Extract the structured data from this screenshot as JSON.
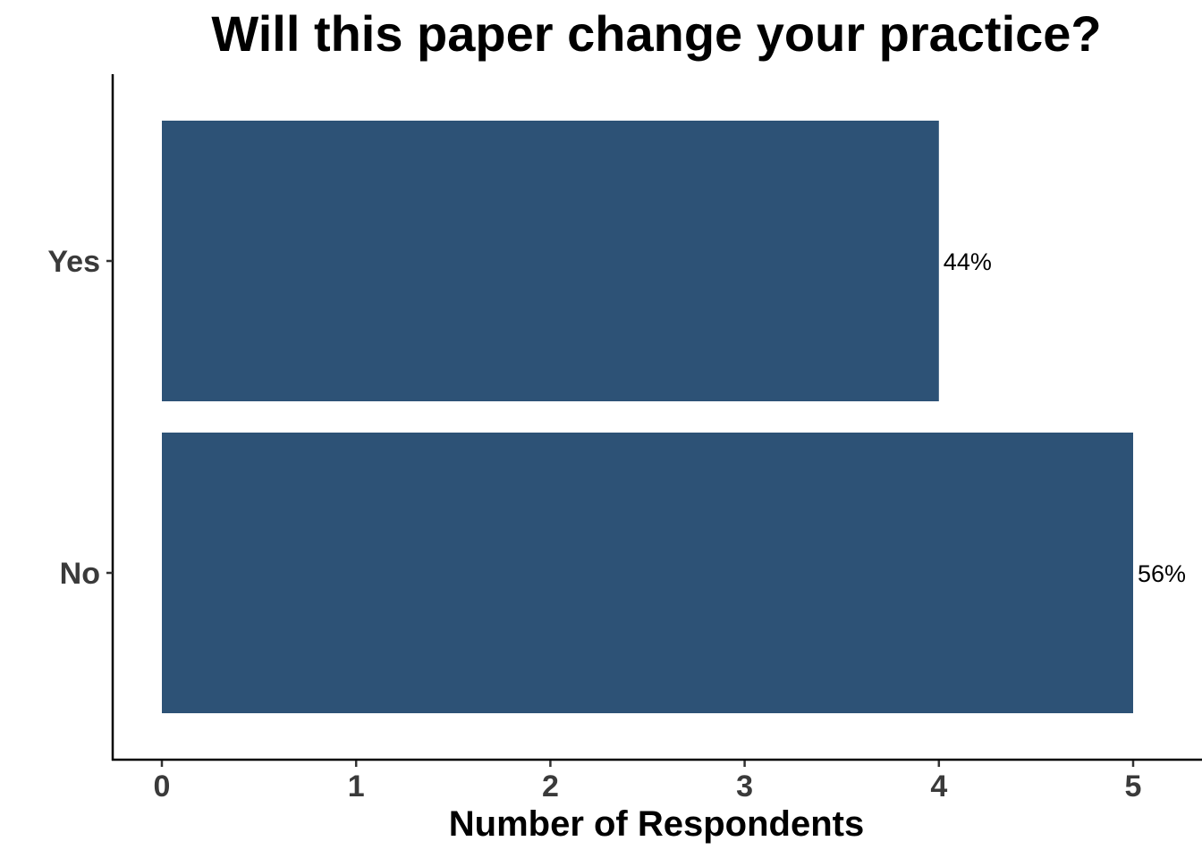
{
  "chart_data": {
    "type": "bar",
    "orientation": "horizontal",
    "title": "Will this paper change your practice?",
    "xlabel": "Number of Respondents",
    "ylabel": "",
    "categories": [
      "No",
      "Yes"
    ],
    "values": [
      5,
      4
    ],
    "data_labels": [
      "56%",
      "44%"
    ],
    "xlim": [
      0,
      5
    ],
    "xticks": [
      0,
      1,
      2,
      3,
      4,
      5
    ],
    "grid": false,
    "legend": "none",
    "bar_color": "#2d5276"
  }
}
